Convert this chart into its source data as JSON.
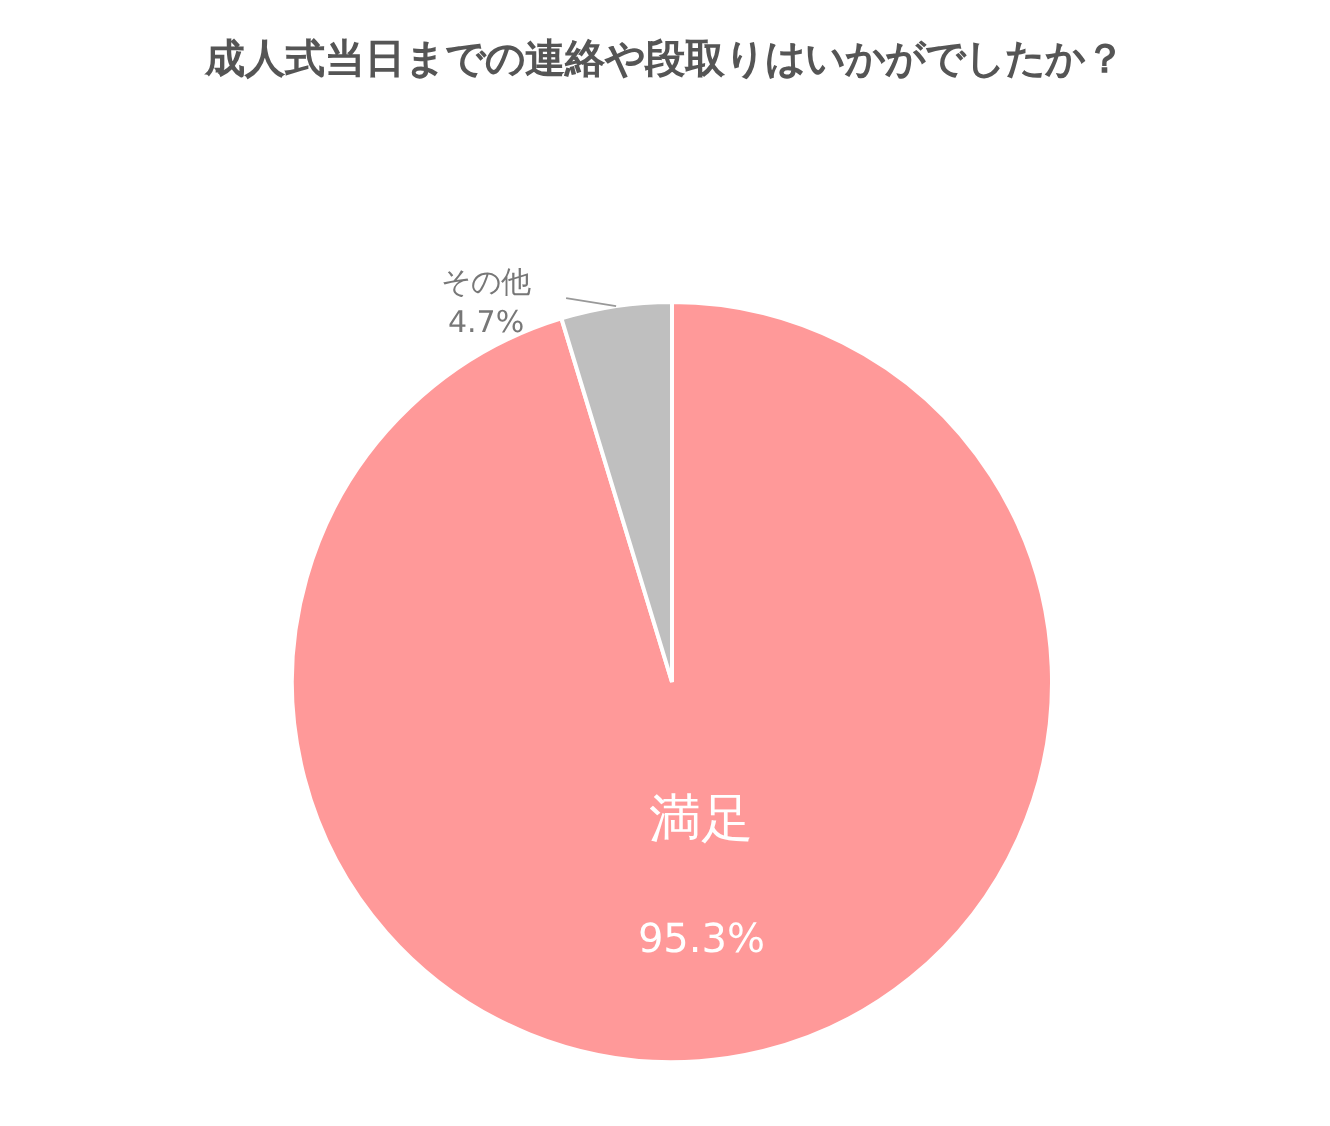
{
  "chart_data": {
    "type": "pie",
    "title": "成人式当日までの連絡や段取りはいかがでしたか？",
    "categories": [
      "満足",
      "その他"
    ],
    "values": [
      95.3,
      4.7
    ],
    "colors": [
      "#ff9999",
      "#bfbfbf"
    ],
    "value_labels": [
      "95.3%",
      "4.7%"
    ]
  }
}
